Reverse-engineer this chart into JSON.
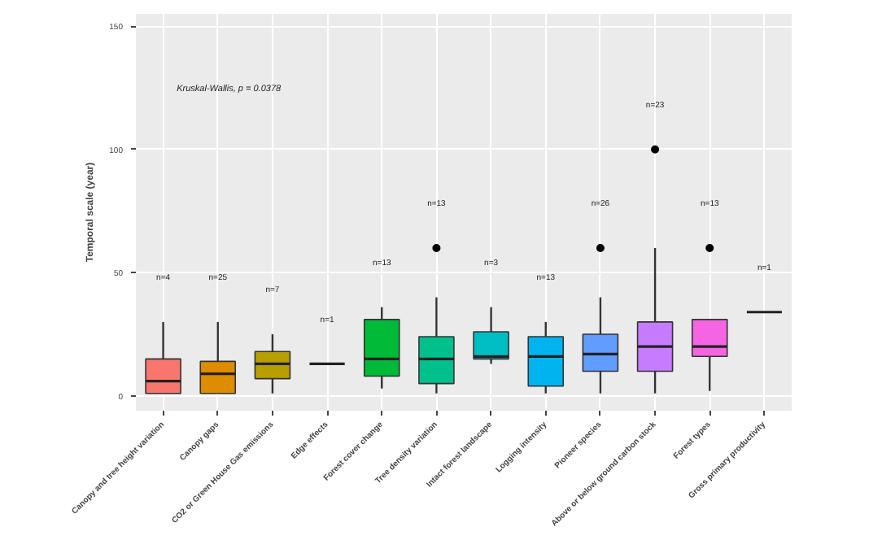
{
  "chart_data": {
    "type": "box",
    "ylabel": "Temporal scale (year)",
    "categories": [
      "Canopy and tree height variation",
      "Canopy gaps",
      "CO2 or Green House Gas emissions",
      "Edge effects",
      "Forest cover change",
      "Tree density variation",
      "Intact forest landscape",
      "Logging intensity",
      "Pioneer species",
      "Above or below ground carbon stock",
      "Forest types",
      "Gross primary productivity"
    ],
    "colors": [
      "#f8766d",
      "#de8c00",
      "#b79f00",
      "#333333",
      "#00ba38",
      "#00c08b",
      "#00bfc4",
      "#00b4f0",
      "#619cff",
      "#c77cff",
      "#f564e3",
      "#333333"
    ],
    "boxes": [
      {
        "low": 1,
        "q1": 1,
        "median": 6,
        "q3": 15,
        "high": 30
      },
      {
        "low": 1,
        "q1": 1,
        "median": 9,
        "q3": 14,
        "high": 30
      },
      {
        "low": 1,
        "q1": 7,
        "median": 13,
        "q3": 18,
        "high": 25
      },
      {
        "low": 13,
        "q1": 13,
        "median": 13,
        "q3": 13,
        "high": 13
      },
      {
        "low": 3,
        "q1": 8,
        "median": 15,
        "q3": 31,
        "high": 36
      },
      {
        "low": 1,
        "q1": 5,
        "median": 15,
        "q3": 24,
        "high": 40,
        "outliers": [
          60
        ]
      },
      {
        "low": 13,
        "q1": 15,
        "median": 16,
        "q3": 26,
        "high": 36
      },
      {
        "low": 1,
        "q1": 4,
        "median": 16,
        "q3": 24,
        "high": 30
      },
      {
        "low": 1,
        "q1": 10,
        "median": 17,
        "q3": 25,
        "high": 40,
        "outliers": [
          60
        ]
      },
      {
        "low": 1,
        "q1": 10,
        "median": 20,
        "q3": 30,
        "high": 60,
        "outliers": [
          100
        ]
      },
      {
        "low": 2,
        "q1": 16,
        "median": 20,
        "q3": 31,
        "high": 31,
        "outliers": [
          60
        ]
      },
      {
        "low": 34,
        "q1": 34,
        "median": 34,
        "q3": 34,
        "high": 34
      }
    ],
    "ylim": [
      -6,
      155
    ],
    "yticks": [
      0,
      50,
      100,
      150
    ],
    "grid": true,
    "annotations": [
      "Kruskal-Wallis, p = 0.0378",
      "n=4",
      "n=25",
      "n=7",
      "n=1",
      "n=13",
      "n=13",
      "n=3",
      "n=13",
      "n=26",
      "n=23",
      "n=13",
      "n=1"
    ]
  }
}
